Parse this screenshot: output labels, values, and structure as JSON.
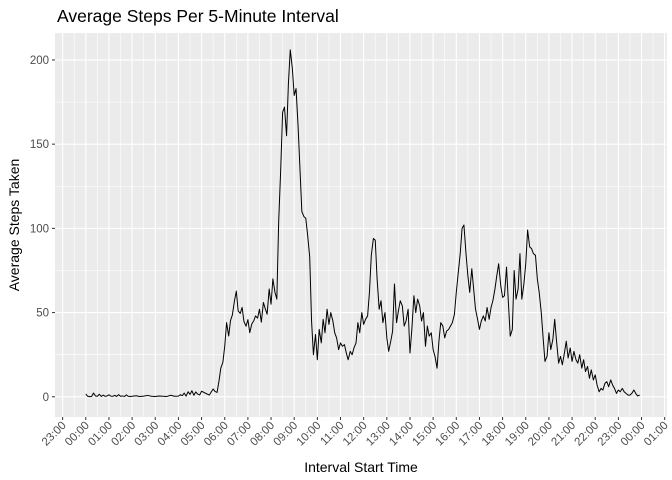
{
  "chart_data": {
    "type": "line",
    "title": "Average Steps Per 5-Minute Interval",
    "xlabel": "Interval Start Time",
    "ylabel": "Average Steps Taken",
    "xlim_hours": [
      -1.33,
      25.1
    ],
    "ylim": [
      -12,
      216
    ],
    "y_ticks": [
      0,
      50,
      100,
      150,
      200
    ],
    "x_ticks": [
      {
        "hour": -1,
        "label": "23:00"
      },
      {
        "hour": 0,
        "label": "00:00"
      },
      {
        "hour": 1,
        "label": "01:00"
      },
      {
        "hour": 2,
        "label": "02:00"
      },
      {
        "hour": 3,
        "label": "03:00"
      },
      {
        "hour": 4,
        "label": "04:00"
      },
      {
        "hour": 5,
        "label": "05:00"
      },
      {
        "hour": 6,
        "label": "06:00"
      },
      {
        "hour": 7,
        "label": "07:00"
      },
      {
        "hour": 8,
        "label": "08:00"
      },
      {
        "hour": 9,
        "label": "09:00"
      },
      {
        "hour": 10,
        "label": "10:00"
      },
      {
        "hour": 11,
        "label": "11:00"
      },
      {
        "hour": 12,
        "label": "12:00"
      },
      {
        "hour": 13,
        "label": "13:00"
      },
      {
        "hour": 14,
        "label": "14:00"
      },
      {
        "hour": 15,
        "label": "15:00"
      },
      {
        "hour": 16,
        "label": "16:00"
      },
      {
        "hour": 17,
        "label": "17:00"
      },
      {
        "hour": 18,
        "label": "18:00"
      },
      {
        "hour": 19,
        "label": "19:00"
      },
      {
        "hour": 20,
        "label": "20:00"
      },
      {
        "hour": 21,
        "label": "21:00"
      },
      {
        "hour": 22,
        "label": "22:00"
      },
      {
        "hour": 23,
        "label": "23:00"
      },
      {
        "hour": 24,
        "label": "00:00"
      },
      {
        "hour": 25,
        "label": "01:00"
      }
    ],
    "grid": true,
    "panel_background": "#EBEBEB",
    "grid_color": "#FFFFFF",
    "line_color": "#000000",
    "series": [
      {
        "x": [
          0.0,
          0.08,
          0.17,
          0.25,
          0.33,
          0.42,
          0.5,
          0.58,
          0.67,
          0.75,
          0.83,
          0.92,
          1.0,
          1.08,
          1.17,
          1.25,
          1.33,
          1.42,
          1.5,
          1.58,
          1.67,
          1.75,
          1.83,
          1.92,
          2.0,
          2.17,
          2.33,
          2.5,
          2.67,
          2.83,
          3.0,
          3.17,
          3.33,
          3.5,
          3.67,
          3.83,
          4.0,
          4.08,
          4.17,
          4.25,
          4.33,
          4.42,
          4.5,
          4.58,
          4.67,
          4.75,
          4.83,
          4.92,
          5.0,
          5.17,
          5.33,
          5.5,
          5.58,
          5.67,
          5.75,
          5.83,
          5.92,
          6.0,
          6.08,
          6.17,
          6.25,
          6.33,
          6.42,
          6.5,
          6.58,
          6.67,
          6.75,
          6.83,
          6.92,
          7.0,
          7.08,
          7.17,
          7.25,
          7.33,
          7.42,
          7.5,
          7.58,
          7.67,
          7.75,
          7.83,
          7.92,
          8.0,
          8.08,
          8.17,
          8.25,
          8.33,
          8.42,
          8.5,
          8.58,
          8.67,
          8.75,
          8.83,
          8.92,
          9.0,
          9.08,
          9.17,
          9.25,
          9.33,
          9.42,
          9.5,
          9.58,
          9.67,
          9.75,
          9.83,
          9.92,
          10.0,
          10.08,
          10.17,
          10.25,
          10.33,
          10.42,
          10.5,
          10.58,
          10.67,
          10.75,
          10.83,
          10.92,
          11.0,
          11.08,
          11.17,
          11.25,
          11.33,
          11.42,
          11.5,
          11.58,
          11.67,
          11.75,
          11.83,
          11.92,
          12.0,
          12.08,
          12.17,
          12.25,
          12.33,
          12.42,
          12.5,
          12.58,
          12.67,
          12.75,
          12.83,
          12.92,
          13.0,
          13.08,
          13.17,
          13.25,
          13.33,
          13.42,
          13.5,
          13.58,
          13.67,
          13.75,
          13.83,
          13.92,
          14.0,
          14.08,
          14.17,
          14.25,
          14.33,
          14.42,
          14.5,
          14.58,
          14.67,
          14.75,
          14.83,
          14.92,
          15.0,
          15.08,
          15.17,
          15.25,
          15.33,
          15.42,
          15.5,
          15.58,
          15.67,
          15.75,
          15.83,
          15.92,
          16.0,
          16.08,
          16.17,
          16.25,
          16.33,
          16.42,
          16.5,
          16.58,
          16.67,
          16.75,
          16.83,
          16.92,
          17.0,
          17.08,
          17.17,
          17.25,
          17.33,
          17.42,
          17.5,
          17.58,
          17.67,
          17.75,
          17.83,
          17.92,
          18.0,
          18.08,
          18.17,
          18.25,
          18.33,
          18.42,
          18.5,
          18.58,
          18.67,
          18.75,
          18.83,
          18.92,
          19.0,
          19.08,
          19.17,
          19.25,
          19.33,
          19.42,
          19.5,
          19.58,
          19.67,
          19.75,
          19.83,
          19.92,
          20.0,
          20.08,
          20.17,
          20.25,
          20.33,
          20.42,
          20.5,
          20.58,
          20.67,
          20.75,
          20.83,
          20.92,
          21.0,
          21.08,
          21.17,
          21.25,
          21.33,
          21.42,
          21.5,
          21.58,
          21.67,
          21.75,
          21.83,
          21.92,
          22.0,
          22.08,
          22.17,
          22.25,
          22.33,
          22.42,
          22.5,
          22.58,
          22.67,
          22.75,
          22.83,
          22.92,
          23.0,
          23.08,
          23.17,
          23.25,
          23.33,
          23.42,
          23.5,
          23.58,
          23.67,
          23.75,
          23.83,
          23.92
        ],
        "y": [
          1.7,
          0.3,
          0.1,
          0.2,
          2.2,
          0.5,
          0.3,
          1.5,
          0.2,
          1.0,
          0.3,
          0.5,
          1.2,
          0.4,
          0.3,
          0.9,
          0.2,
          1.3,
          0.3,
          0.5,
          0.2,
          1.1,
          0.3,
          0.2,
          0.3,
          0.6,
          0.2,
          0.4,
          0.8,
          0.3,
          0.2,
          0.5,
          0.3,
          0.2,
          0.9,
          0.3,
          0.4,
          1.2,
          0.7,
          2.2,
          0.4,
          3.0,
          1.4,
          3.6,
          0.9,
          2.9,
          1.6,
          1.1,
          3.3,
          2.1,
          1.0,
          4.6,
          3.2,
          2.6,
          9.2,
          17.0,
          20.5,
          30.0,
          44.0,
          36.1,
          45.3,
          48.6,
          57.0,
          62.7,
          51.0,
          49.5,
          53.1,
          44.7,
          41.9,
          45.8,
          38.1,
          43.3,
          45.0,
          48.0,
          46.7,
          52.0,
          44.3,
          56.0,
          52.3,
          49.0,
          64.0,
          55.0,
          70.0,
          62.0,
          58.0,
          104.0,
          136.0,
          169.0,
          172.0,
          155.0,
          186.0,
          206.0,
          195.0,
          179.0,
          183.0,
          160.0,
          135.0,
          110.0,
          107.0,
          106.0,
          96.0,
          83.0,
          45.0,
          25.0,
          37.0,
          22.0,
          40.0,
          32.0,
          46.0,
          38.0,
          52.0,
          43.0,
          50.0,
          45.0,
          38.0,
          35.0,
          28.0,
          32.0,
          30.0,
          31.0,
          26.0,
          22.0,
          27.0,
          25.0,
          29.0,
          32.0,
          44.0,
          38.0,
          50.0,
          43.0,
          46.0,
          48.0,
          62.0,
          84.0,
          94.0,
          93.0,
          70.0,
          52.0,
          57.0,
          44.0,
          50.0,
          35.0,
          27.0,
          33.0,
          39.0,
          67.0,
          44.0,
          51.0,
          57.0,
          54.0,
          42.0,
          45.0,
          52.0,
          26.0,
          40.0,
          60.0,
          50.0,
          58.0,
          54.0,
          45.0,
          50.0,
          30.0,
          42.0,
          36.0,
          38.0,
          28.0,
          24.0,
          17.0,
          33.0,
          44.0,
          42.0,
          35.0,
          39.0,
          40.0,
          42.0,
          44.0,
          49.0,
          62.0,
          73.0,
          85.0,
          100.0,
          102.0,
          85.0,
          72.0,
          62.0,
          76.0,
          64.0,
          52.0,
          46.0,
          40.0,
          45.0,
          48.0,
          45.0,
          53.0,
          46.0,
          53.0,
          57.0,
          64.0,
          72.0,
          79.0,
          66.0,
          59.0,
          60.0,
          77.0,
          56.0,
          36.0,
          40.0,
          75.0,
          58.0,
          64.0,
          85.0,
          58.0,
          67.0,
          79.0,
          99.0,
          89.0,
          88.0,
          85.0,
          84.0,
          70.0,
          62.0,
          50.0,
          35.0,
          21.0,
          24.0,
          38.0,
          28.0,
          34.0,
          46.0,
          33.0,
          20.0,
          24.0,
          19.0,
          26.0,
          33.0,
          23.0,
          29.0,
          21.0,
          27.0,
          22.0,
          20.0,
          25.0,
          17.0,
          22.0,
          15.0,
          18.0,
          11.0,
          16.0,
          10.0,
          13.0,
          7.0,
          3.0,
          5.0,
          4.0,
          8.0,
          9.0,
          6.0,
          10.0,
          7.0,
          5.0,
          2.0,
          4.0,
          3.0,
          5.0,
          3.0,
          2.0,
          1.0,
          1.0,
          2.0,
          4.0,
          2.0,
          0.5,
          1.0
        ]
      }
    ]
  }
}
